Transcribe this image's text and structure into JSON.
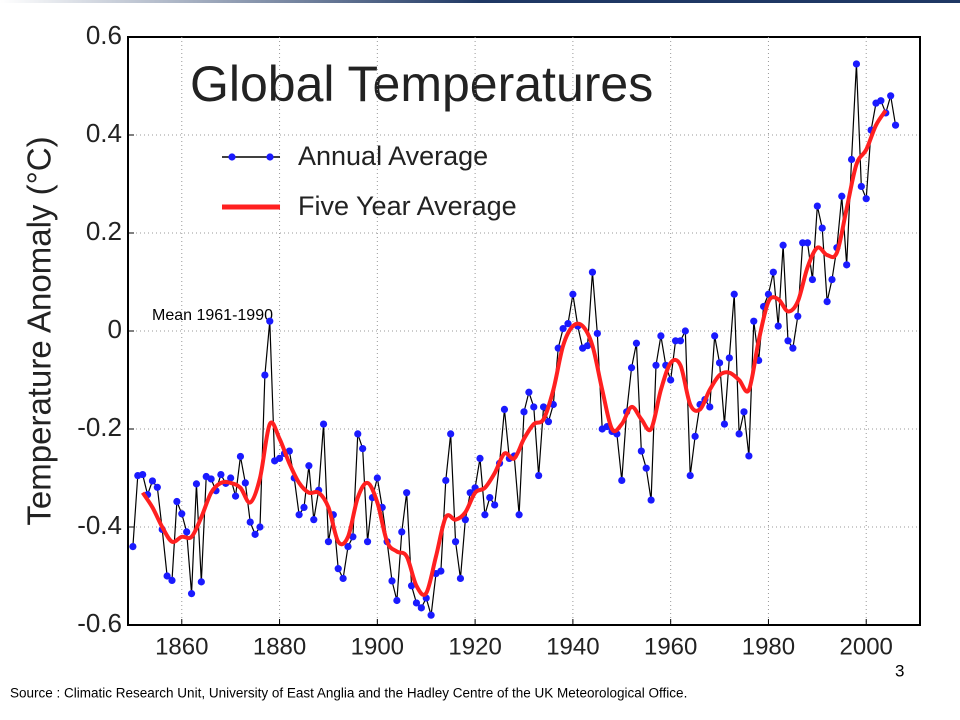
{
  "chart_data": {
    "type": "line",
    "title": "Global Temperatures",
    "y_label": "Temperature Anomaly (°C)",
    "annotation": "Mean 1961-1990",
    "x": [
      1850,
      1851,
      1852,
      1853,
      1854,
      1855,
      1856,
      1857,
      1858,
      1859,
      1860,
      1861,
      1862,
      1863,
      1864,
      1865,
      1866,
      1867,
      1868,
      1869,
      1870,
      1871,
      1872,
      1873,
      1874,
      1875,
      1876,
      1877,
      1878,
      1879,
      1880,
      1881,
      1882,
      1883,
      1884,
      1885,
      1886,
      1887,
      1888,
      1889,
      1890,
      1891,
      1892,
      1893,
      1894,
      1895,
      1896,
      1897,
      1898,
      1899,
      1900,
      1901,
      1902,
      1903,
      1904,
      1905,
      1906,
      1907,
      1908,
      1909,
      1910,
      1911,
      1912,
      1913,
      1914,
      1915,
      1916,
      1917,
      1918,
      1919,
      1920,
      1921,
      1922,
      1923,
      1924,
      1925,
      1926,
      1927,
      1928,
      1929,
      1930,
      1931,
      1932,
      1933,
      1934,
      1935,
      1936,
      1937,
      1938,
      1939,
      1940,
      1941,
      1942,
      1943,
      1944,
      1945,
      1946,
      1947,
      1948,
      1949,
      1950,
      1951,
      1952,
      1953,
      1954,
      1955,
      1956,
      1957,
      1958,
      1959,
      1960,
      1961,
      1962,
      1963,
      1964,
      1965,
      1966,
      1967,
      1968,
      1969,
      1970,
      1971,
      1972,
      1973,
      1974,
      1975,
      1976,
      1977,
      1978,
      1979,
      1980,
      1981,
      1982,
      1983,
      1984,
      1985,
      1986,
      1987,
      1988,
      1989,
      1990,
      1991,
      1992,
      1993,
      1994,
      1995,
      1996,
      1997,
      1998,
      1999,
      2000,
      2001,
      2002,
      2003,
      2004,
      2005,
      2006
    ],
    "series": [
      {
        "name": "Annual Average",
        "color": "#1a1aff",
        "line_color": "#000000",
        "markers": true,
        "values": [
          -0.44,
          -0.295,
          -0.293,
          -0.334,
          -0.306,
          -0.319,
          -0.405,
          -0.5,
          -0.509,
          -0.348,
          -0.373,
          -0.41,
          -0.536,
          -0.312,
          -0.512,
          -0.297,
          -0.302,
          -0.326,
          -0.293,
          -0.311,
          -0.3,
          -0.337,
          -0.256,
          -0.31,
          -0.39,
          -0.415,
          -0.4,
          -0.09,
          0.02,
          -0.265,
          -0.26,
          -0.25,
          -0.245,
          -0.3,
          -0.375,
          -0.36,
          -0.275,
          -0.385,
          -0.325,
          -0.19,
          -0.43,
          -0.375,
          -0.485,
          -0.505,
          -0.44,
          -0.42,
          -0.21,
          -0.24,
          -0.43,
          -0.34,
          -0.3,
          -0.36,
          -0.43,
          -0.51,
          -0.55,
          -0.41,
          -0.33,
          -0.52,
          -0.555,
          -0.565,
          -0.545,
          -0.58,
          -0.495,
          -0.49,
          -0.305,
          -0.21,
          -0.43,
          -0.505,
          -0.385,
          -0.33,
          -0.32,
          -0.26,
          -0.375,
          -0.34,
          -0.355,
          -0.27,
          -0.16,
          -0.26,
          -0.255,
          -0.375,
          -0.165,
          -0.125,
          -0.155,
          -0.295,
          -0.155,
          -0.185,
          -0.15,
          -0.035,
          0.005,
          0.015,
          0.075,
          0.01,
          -0.035,
          -0.03,
          0.12,
          -0.005,
          -0.2,
          -0.195,
          -0.205,
          -0.21,
          -0.305,
          -0.165,
          -0.075,
          -0.025,
          -0.245,
          -0.28,
          -0.345,
          -0.07,
          -0.01,
          -0.07,
          -0.1,
          -0.02,
          -0.02,
          0.0,
          -0.295,
          -0.215,
          -0.15,
          -0.14,
          -0.155,
          -0.01,
          -0.065,
          -0.19,
          -0.055,
          0.075,
          -0.21,
          -0.165,
          -0.255,
          0.02,
          -0.06,
          0.05,
          0.075,
          0.12,
          0.01,
          0.175,
          -0.02,
          -0.035,
          0.03,
          0.18,
          0.18,
          0.105,
          0.255,
          0.21,
          0.06,
          0.105,
          0.17,
          0.275,
          0.135,
          0.35,
          0.545,
          0.295,
          0.27,
          0.41,
          0.465,
          0.47,
          0.445,
          0.48,
          0.42
        ]
      },
      {
        "name": "Five Year Average",
        "color": "#ff2020",
        "smooth": true,
        "x": [
          1852,
          1854,
          1856,
          1858,
          1860,
          1862,
          1864,
          1866,
          1868,
          1870,
          1872,
          1874,
          1876,
          1878,
          1880,
          1882,
          1884,
          1886,
          1888,
          1890,
          1892,
          1894,
          1896,
          1898,
          1900,
          1902,
          1904,
          1906,
          1908,
          1910,
          1912,
          1914,
          1916,
          1918,
          1920,
          1922,
          1924,
          1926,
          1928,
          1930,
          1932,
          1934,
          1936,
          1938,
          1940,
          1942,
          1944,
          1946,
          1948,
          1950,
          1952,
          1954,
          1956,
          1958,
          1960,
          1962,
          1964,
          1966,
          1968,
          1970,
          1972,
          1974,
          1976,
          1978,
          1980,
          1982,
          1984,
          1986,
          1988,
          1990,
          1992,
          1994,
          1996,
          1998,
          2000,
          2002,
          2004
        ],
        "values": [
          -0.33,
          -0.36,
          -0.4,
          -0.43,
          -0.42,
          -0.42,
          -0.38,
          -0.33,
          -0.31,
          -0.31,
          -0.32,
          -0.35,
          -0.3,
          -0.19,
          -0.22,
          -0.27,
          -0.31,
          -0.33,
          -0.33,
          -0.36,
          -0.43,
          -0.42,
          -0.34,
          -0.31,
          -0.35,
          -0.43,
          -0.45,
          -0.46,
          -0.52,
          -0.535,
          -0.46,
          -0.38,
          -0.385,
          -0.37,
          -0.33,
          -0.32,
          -0.29,
          -0.25,
          -0.26,
          -0.22,
          -0.19,
          -0.18,
          -0.12,
          -0.03,
          0.01,
          0.01,
          -0.03,
          -0.12,
          -0.2,
          -0.19,
          -0.155,
          -0.18,
          -0.2,
          -0.12,
          -0.065,
          -0.07,
          -0.15,
          -0.16,
          -0.12,
          -0.09,
          -0.085,
          -0.1,
          -0.12,
          -0.02,
          0.06,
          0.065,
          0.04,
          0.06,
          0.13,
          0.17,
          0.155,
          0.16,
          0.25,
          0.34,
          0.37,
          0.42,
          0.45
        ]
      }
    ],
    "xlim": [
      1849,
      2011
    ],
    "ylim": [
      -0.6,
      0.6
    ],
    "xticks": [
      1860,
      1880,
      1900,
      1920,
      1940,
      1960,
      1980,
      2000
    ],
    "yticks": [
      -0.6,
      -0.4,
      -0.2,
      0,
      0.2,
      0.4,
      0.6
    ],
    "grid": true
  },
  "page_number": "3",
  "source": "Source : Climatic Research Unit, University of East Anglia and the Hadley Centre of the UK Meteorological Office."
}
